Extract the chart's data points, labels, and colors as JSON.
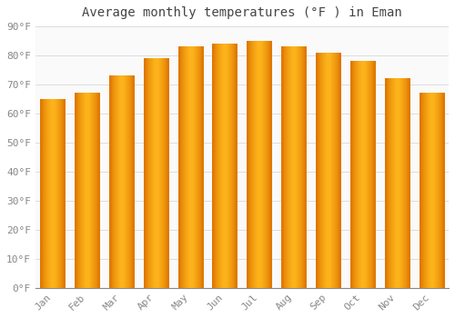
{
  "title": "Average monthly temperatures (°F ) in Eman",
  "months": [
    "Jan",
    "Feb",
    "Mar",
    "Apr",
    "May",
    "Jun",
    "Jul",
    "Aug",
    "Sep",
    "Oct",
    "Nov",
    "Dec"
  ],
  "values": [
    65,
    67,
    73,
    79,
    83,
    84,
    85,
    83,
    81,
    78,
    72,
    67
  ],
  "bar_color_center": "#FFB300",
  "bar_color_edge": "#E07800",
  "background_color": "#FFFFFF",
  "plot_bg_color": "#FAFAFA",
  "ylim": [
    0,
    90
  ],
  "yticks": [
    0,
    10,
    20,
    30,
    40,
    50,
    60,
    70,
    80,
    90
  ],
  "ytick_labels": [
    "0°F",
    "10°F",
    "20°F",
    "30°F",
    "40°F",
    "50°F",
    "60°F",
    "70°F",
    "80°F",
    "90°F"
  ],
  "title_fontsize": 10,
  "tick_fontsize": 8,
  "grid_color": "#DDDDDD",
  "font_family": "monospace",
  "tick_color": "#888888",
  "title_color": "#444444"
}
